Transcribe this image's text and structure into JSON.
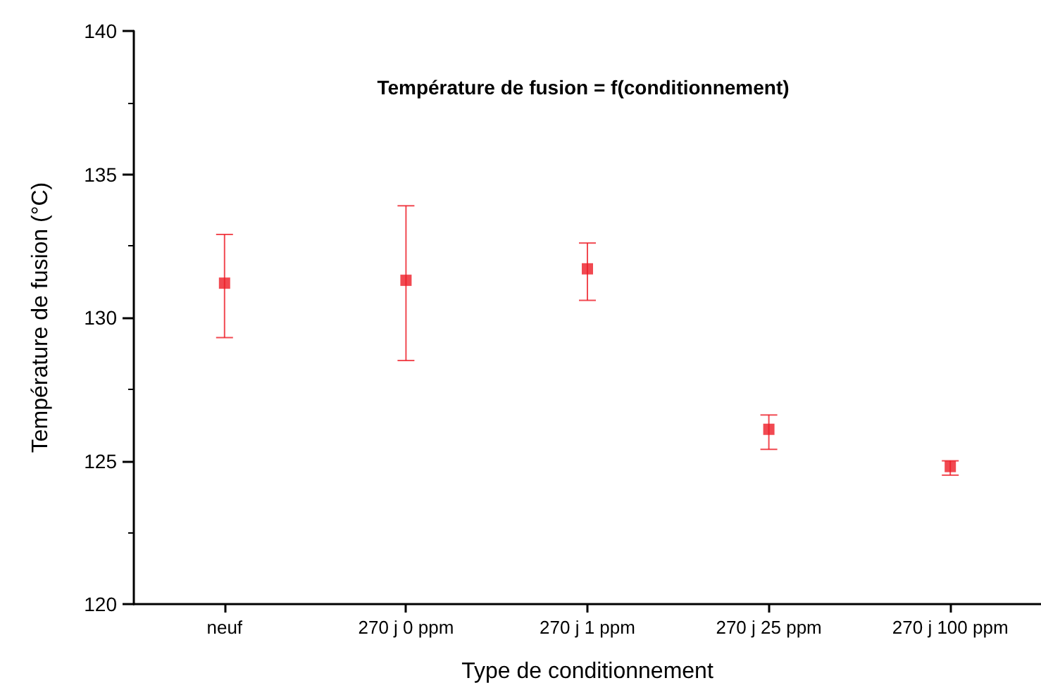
{
  "chart_data": {
    "type": "scatter",
    "title": "Température de fusion = f(conditionnement)",
    "xlabel": "Type de conditionnement",
    "ylabel": "Température de fusion (°C)",
    "categories": [
      "neuf",
      "270 j 0 ppm",
      "270 j 1 ppm",
      "270 j 25 ppm",
      "270 j 100 ppm"
    ],
    "values": [
      131.2,
      131.3,
      131.7,
      126.1,
      124.8
    ],
    "errors": [
      [
        129.3,
        132.9
      ],
      [
        128.5,
        133.9
      ],
      [
        130.6,
        132.6
      ],
      [
        125.4,
        126.6
      ],
      [
        124.5,
        125.0
      ]
    ],
    "color": "#ee1c25",
    "marker": "square",
    "ylim": [
      120,
      140
    ],
    "yticks": [
      120,
      125,
      130,
      135,
      140
    ],
    "grid": false
  }
}
